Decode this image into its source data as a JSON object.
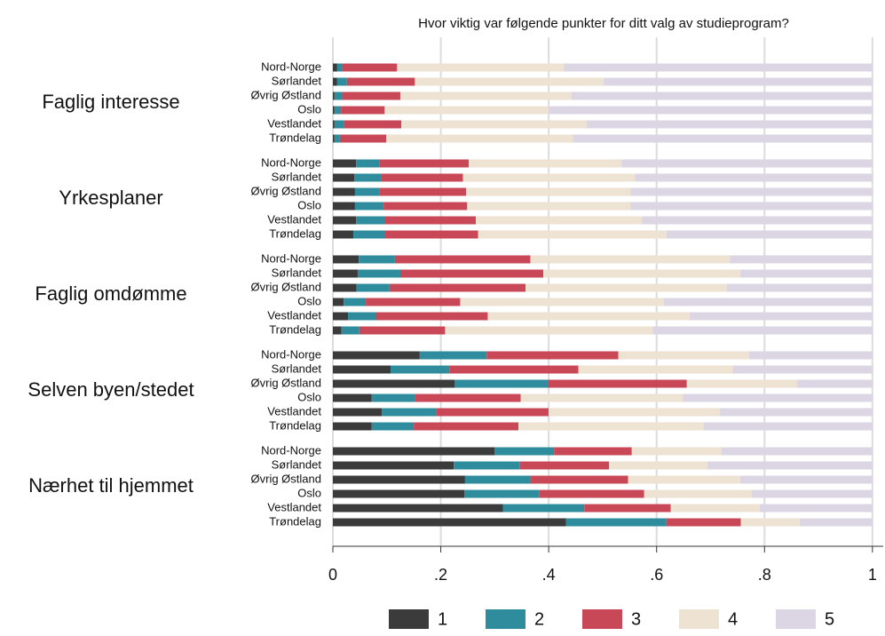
{
  "chart_data": {
    "type": "stacked-bar-horizontal",
    "title": "Hvor viktig var følgende punkter for ditt valg av studieprogram?",
    "groups": [
      "Faglig interesse",
      "Yrkesplaner",
      "Faglig omdømme",
      "Selven byen/stedet",
      "Nærhet til hjemmet"
    ],
    "categories": [
      "Nord-Norge",
      "Sørlandet",
      "Øvrig Østland",
      "Oslo",
      "Vestlandet",
      "Trøndelag",
      "Nord-Norge",
      "Sørlandet",
      "Øvrig Østland",
      "Oslo",
      "Vestlandet",
      "Trøndelag",
      "Nord-Norge",
      "Sørlandet",
      "Øvrig Østland",
      "Oslo",
      "Vestlandet",
      "Trøndelag",
      "Nord-Norge",
      "Sørlandet",
      "Øvrig Østland",
      "Oslo",
      "Vestlandet",
      "Trøndelag",
      "Nord-Norge",
      "Sørlandet",
      "Øvrig Østland",
      "Oslo",
      "Vestlandet",
      "Trøndelag"
    ],
    "series": [
      {
        "name": "1",
        "color": "#3b3b3b",
        "values": [
          0.008,
          0.008,
          0.003,
          0.003,
          0.003,
          0.003,
          0.043,
          0.04,
          0.041,
          0.041,
          0.043,
          0.038,
          0.048,
          0.046,
          0.044,
          0.02,
          0.028,
          0.016,
          0.161,
          0.107,
          0.226,
          0.072,
          0.091,
          0.072,
          0.3,
          0.224,
          0.245,
          0.244,
          0.315,
          0.432
        ]
      },
      {
        "name": "2",
        "color": "#2e8c9c",
        "values": [
          0.01,
          0.018,
          0.015,
          0.012,
          0.017,
          0.01,
          0.044,
          0.049,
          0.046,
          0.053,
          0.054,
          0.059,
          0.067,
          0.079,
          0.061,
          0.041,
          0.051,
          0.033,
          0.124,
          0.109,
          0.173,
          0.08,
          0.1,
          0.078,
          0.11,
          0.122,
          0.122,
          0.138,
          0.151,
          0.186
        ]
      },
      {
        "name": "3",
        "color": "#c84857",
        "values": [
          0.101,
          0.126,
          0.107,
          0.081,
          0.107,
          0.086,
          0.165,
          0.152,
          0.16,
          0.155,
          0.168,
          0.172,
          0.251,
          0.265,
          0.252,
          0.175,
          0.208,
          0.159,
          0.244,
          0.239,
          0.257,
          0.196,
          0.209,
          0.194,
          0.144,
          0.166,
          0.18,
          0.195,
          0.16,
          0.138
        ]
      },
      {
        "name": "4",
        "color": "#eee3d2",
        "values": [
          0.309,
          0.35,
          0.317,
          0.304,
          0.343,
          0.346,
          0.283,
          0.319,
          0.305,
          0.303,
          0.308,
          0.349,
          0.37,
          0.365,
          0.373,
          0.377,
          0.374,
          0.385,
          0.242,
          0.286,
          0.204,
          0.301,
          0.317,
          0.343,
          0.166,
          0.182,
          0.208,
          0.199,
          0.165,
          0.109
        ]
      },
      {
        "name": "5",
        "color": "#dcd5e3",
        "values": [
          0.572,
          0.498,
          0.558,
          0.6,
          0.53,
          0.555,
          0.465,
          0.44,
          0.448,
          0.448,
          0.427,
          0.382,
          0.264,
          0.245,
          0.27,
          0.387,
          0.339,
          0.407,
          0.229,
          0.259,
          0.14,
          0.351,
          0.283,
          0.313,
          0.28,
          0.306,
          0.245,
          0.224,
          0.209,
          0.135
        ]
      }
    ],
    "xlim": [
      0,
      1.02
    ],
    "xticks": [
      0,
      {
        "value": 0.2,
        "label": ".2"
      },
      {
        "value": 0.4,
        "label": ".4"
      },
      {
        "value": 0.6,
        "label": ".6"
      },
      {
        "value": 0.8,
        "label": ".8"
      },
      1
    ],
    "grid": true
  }
}
